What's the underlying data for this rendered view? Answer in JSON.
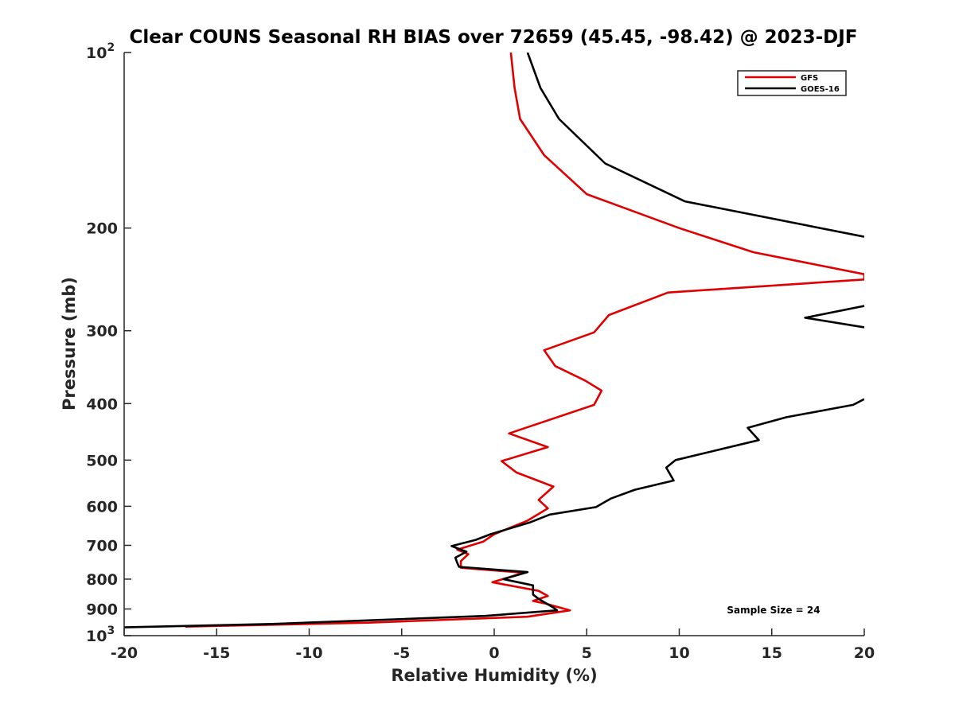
{
  "chart_data": {
    "type": "line",
    "title": "Clear COUNS Seasonal RH BIAS over 72659 (45.45, -98.42) @ 2023-DJF",
    "xlabel": "Relative Humidity (%)",
    "ylabel": "Pressure (mb)",
    "xlim": [
      -20,
      20
    ],
    "ylim": [
      100,
      1000
    ],
    "y_scale": "log",
    "y_reversed": true,
    "x_ticks": [
      "-20",
      "-15",
      "-10",
      "-5",
      "0",
      "5",
      "10",
      "15",
      "20"
    ],
    "y_ticks": [
      {
        "value": 100,
        "base": "10",
        "exp": "2"
      },
      {
        "value": 200,
        "label": "200"
      },
      {
        "value": 300,
        "label": "300"
      },
      {
        "value": 400,
        "label": "400"
      },
      {
        "value": 500,
        "label": "500"
      },
      {
        "value": 600,
        "label": "600"
      },
      {
        "value": 700,
        "label": "700"
      },
      {
        "value": 800,
        "label": "800"
      },
      {
        "value": 900,
        "label": "900"
      },
      {
        "value": 1000,
        "base": "10",
        "exp": "3"
      }
    ],
    "grid": false,
    "legend_position": "top-right",
    "annotation": "Sample Size = 24",
    "series": [
      {
        "name": "GFS",
        "color": "#e00000",
        "points": [
          [
            0.9,
            100
          ],
          [
            1.1,
            115
          ],
          [
            1.4,
            130
          ],
          [
            2.7,
            150
          ],
          [
            5.0,
            175
          ],
          [
            10.0,
            200
          ],
          [
            14.0,
            220
          ],
          [
            20.0,
            240
          ],
          [
            20.0,
            245
          ],
          [
            9.4,
            258
          ],
          [
            6.2,
            282
          ],
          [
            5.4,
            302
          ],
          [
            2.7,
            324
          ],
          [
            3.3,
            345
          ],
          [
            4.9,
            365
          ],
          [
            5.8,
            380
          ],
          [
            5.4,
            402
          ],
          [
            0.8,
            450
          ],
          [
            2.9,
            475
          ],
          [
            0.4,
            502
          ],
          [
            1.2,
            525
          ],
          [
            3.2,
            555
          ],
          [
            2.4,
            585
          ],
          [
            2.9,
            605
          ],
          [
            1.8,
            635
          ],
          [
            0.0,
            670
          ],
          [
            -0.6,
            690
          ],
          [
            -2.0,
            712
          ],
          [
            -1.4,
            725
          ],
          [
            -1.8,
            745
          ],
          [
            -1.8,
            765
          ],
          [
            1.6,
            780
          ],
          [
            -0.1,
            810
          ],
          [
            2.4,
            838
          ],
          [
            2.9,
            855
          ],
          [
            2.1,
            872
          ],
          [
            2.7,
            880
          ],
          [
            4.1,
            905
          ],
          [
            1.8,
            928
          ],
          [
            -6.8,
            950
          ],
          [
            -16.7,
            965
          ]
        ]
      },
      {
        "name": "GOES-16",
        "color": "#000000",
        "points": [
          [
            1.8,
            100
          ],
          [
            2.5,
            115
          ],
          [
            3.5,
            130
          ],
          [
            6.0,
            155
          ],
          [
            10.3,
            180
          ],
          [
            20.0,
            207
          ],
          null,
          [
            20.0,
            272
          ],
          [
            16.8,
            285
          ],
          [
            20.0,
            296
          ],
          null,
          [
            20.0,
            393
          ],
          [
            19.4,
            402
          ],
          [
            15.8,
            422
          ],
          [
            13.7,
            440
          ],
          [
            14.3,
            462
          ],
          [
            9.8,
            500
          ],
          [
            9.3,
            515
          ],
          [
            9.7,
            542
          ],
          [
            7.6,
            562
          ],
          [
            6.3,
            582
          ],
          [
            5.5,
            602
          ],
          [
            3.0,
            620
          ],
          [
            1.9,
            640
          ],
          [
            -0.2,
            670
          ],
          [
            -1.0,
            685
          ],
          [
            -2.3,
            702
          ],
          [
            -1.5,
            718
          ],
          [
            -2.1,
            735
          ],
          [
            -2.0,
            750
          ],
          [
            -1.9,
            762
          ],
          [
            1.8,
            778
          ],
          [
            0.5,
            800
          ],
          [
            2.1,
            820
          ],
          [
            2.1,
            850
          ],
          [
            2.4,
            865
          ],
          [
            2.8,
            880
          ],
          [
            3.2,
            895
          ],
          [
            3.4,
            905
          ],
          [
            -0.5,
            925
          ],
          [
            -12.0,
            955
          ],
          [
            -20.0,
            968
          ]
        ]
      }
    ]
  }
}
